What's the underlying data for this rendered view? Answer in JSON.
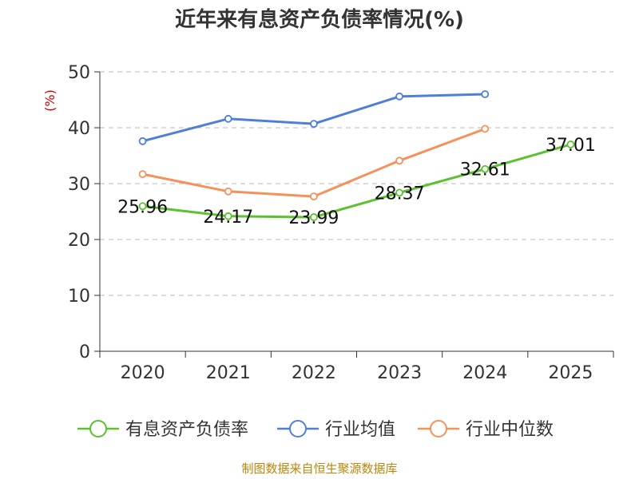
{
  "chart_data": {
    "type": "line",
    "title": "近年来有息资产负债率情况(%)",
    "ylabel": "(%)",
    "xlabel": "",
    "categories": [
      "2020",
      "2021",
      "2022",
      "2023",
      "2024",
      "2025"
    ],
    "ylim": [
      0,
      50
    ],
    "yticks": [
      0,
      10,
      20,
      30,
      40,
      50
    ],
    "grid": "horizontal-dashed",
    "legend_position": "bottom",
    "series": [
      {
        "name": "有息资产负债率",
        "color": "#5cc12f",
        "values": [
          25.96,
          24.17,
          23.99,
          28.37,
          32.61,
          37.01
        ],
        "labels": [
          "25.96",
          "24.17",
          "23.99",
          "28.37",
          "32.61",
          "37.01"
        ]
      },
      {
        "name": "行业均值",
        "color": "#4f7fd8",
        "values": [
          37.6,
          41.6,
          40.7,
          45.6,
          46.0,
          null
        ]
      },
      {
        "name": "行业中位数",
        "color": "#f5915a",
        "values": [
          31.7,
          28.6,
          27.7,
          34.1,
          39.8,
          null
        ]
      }
    ]
  },
  "footer": {
    "source": "制图数据来自恒生聚源数据库"
  }
}
